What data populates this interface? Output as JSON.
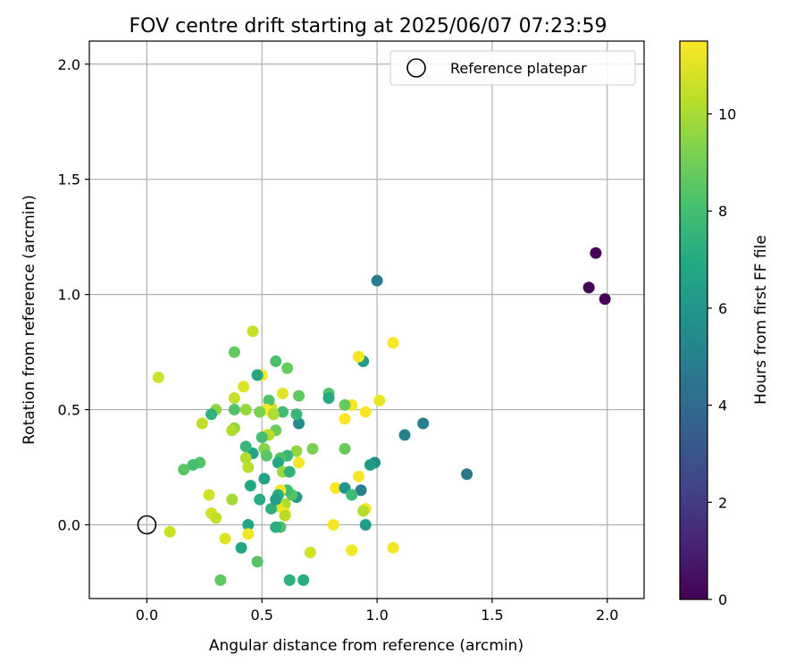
{
  "chart_data": {
    "type": "scatter",
    "title": "FOV centre drift starting at 2025/06/07 07:23:59",
    "xlabel": "Angular distance from reference (arcmin)",
    "ylabel": "Rotation from reference (arcmin)",
    "xlim": [
      -0.25,
      2.16
    ],
    "ylim": [
      -0.32,
      2.1
    ],
    "x_ticks": [
      0.0,
      0.5,
      1.0,
      1.5,
      2.0
    ],
    "x_tick_labels": [
      "0.0",
      "0.5",
      "1.0",
      "1.5",
      "2.0"
    ],
    "y_ticks": [
      0.0,
      0.5,
      1.0,
      1.5,
      2.0
    ],
    "y_tick_labels": [
      "0.0",
      "0.5",
      "1.0",
      "1.5",
      "2.0"
    ],
    "grid": true,
    "colormap": "viridis",
    "colorbar": {
      "label": "Hours from first FF file",
      "range": [
        0,
        11.5
      ],
      "ticks": [
        0,
        2,
        4,
        6,
        8,
        10
      ],
      "tick_labels": [
        "0",
        "2",
        "4",
        "6",
        "8",
        "10"
      ]
    },
    "legend": {
      "position": "top-right",
      "entries": [
        {
          "label": "Reference platepar",
          "marker": "hollow-circle"
        }
      ]
    },
    "reference_point": {
      "x": 0.0,
      "y": 0.0
    },
    "points": [
      {
        "x": 1.95,
        "y": 1.18,
        "c": 0.1
      },
      {
        "x": 1.92,
        "y": 1.03,
        "c": 0.1
      },
      {
        "x": 1.99,
        "y": 0.98,
        "c": 0.1
      },
      {
        "x": 1.0,
        "y": 1.06,
        "c": 4.8
      },
      {
        "x": 1.39,
        "y": 0.22,
        "c": 4.6
      },
      {
        "x": 1.2,
        "y": 0.44,
        "c": 4.9
      },
      {
        "x": 1.12,
        "y": 0.39,
        "c": 5.0
      },
      {
        "x": 0.94,
        "y": 0.71,
        "c": 6.2
      },
      {
        "x": 0.92,
        "y": 0.73,
        "c": 11.3
      },
      {
        "x": 1.07,
        "y": 0.79,
        "c": 11.4
      },
      {
        "x": 1.01,
        "y": 0.54,
        "c": 11.2
      },
      {
        "x": 0.95,
        "y": 0.49,
        "c": 11.4
      },
      {
        "x": 0.89,
        "y": 0.52,
        "c": 11.3
      },
      {
        "x": 0.86,
        "y": 0.46,
        "c": 11.5
      },
      {
        "x": 0.99,
        "y": 0.27,
        "c": 5.6
      },
      {
        "x": 0.97,
        "y": 0.26,
        "c": 6.3
      },
      {
        "x": 0.93,
        "y": 0.15,
        "c": 4.9
      },
      {
        "x": 0.92,
        "y": 0.21,
        "c": 11.3
      },
      {
        "x": 0.95,
        "y": 0.07,
        "c": 11.4
      },
      {
        "x": 0.94,
        "y": 0.06,
        "c": 10.2
      },
      {
        "x": 0.95,
        "y": 0.0,
        "c": 6.4
      },
      {
        "x": 0.89,
        "y": -0.11,
        "c": 11.3
      },
      {
        "x": 1.07,
        "y": -0.1,
        "c": 11.3
      },
      {
        "x": 0.81,
        "y": 0.0,
        "c": 11.4
      },
      {
        "x": 0.82,
        "y": 0.16,
        "c": 11.5
      },
      {
        "x": 0.86,
        "y": 0.16,
        "c": 5.9
      },
      {
        "x": 0.89,
        "y": 0.13,
        "c": 7.8
      },
      {
        "x": 0.86,
        "y": 0.33,
        "c": 8.8
      },
      {
        "x": 0.86,
        "y": 0.52,
        "c": 8.8
      },
      {
        "x": 0.79,
        "y": 0.57,
        "c": 8.3
      },
      {
        "x": 0.79,
        "y": 0.55,
        "c": 7.0
      },
      {
        "x": 0.72,
        "y": 0.33,
        "c": 9.2
      },
      {
        "x": 0.71,
        "y": -0.12,
        "c": 10.7
      },
      {
        "x": 0.68,
        "y": -0.24,
        "c": 7.1
      },
      {
        "x": 0.62,
        "y": -0.24,
        "c": 7.3
      },
      {
        "x": 0.66,
        "y": 0.56,
        "c": 8.6
      },
      {
        "x": 0.66,
        "y": 0.44,
        "c": 5.5
      },
      {
        "x": 0.65,
        "y": 0.48,
        "c": 7.6
      },
      {
        "x": 0.65,
        "y": 0.32,
        "c": 9.6
      },
      {
        "x": 0.66,
        "y": 0.27,
        "c": 11.4
      },
      {
        "x": 0.65,
        "y": 0.12,
        "c": 6.3
      },
      {
        "x": 0.63,
        "y": 0.13,
        "c": 8.4
      },
      {
        "x": 0.61,
        "y": 0.68,
        "c": 8.8
      },
      {
        "x": 0.59,
        "y": 0.57,
        "c": 11.0
      },
      {
        "x": 0.59,
        "y": 0.49,
        "c": 7.9
      },
      {
        "x": 0.61,
        "y": 0.3,
        "c": 7.6
      },
      {
        "x": 0.58,
        "y": 0.29,
        "c": 8.3
      },
      {
        "x": 0.57,
        "y": 0.27,
        "c": 6.9
      },
      {
        "x": 0.59,
        "y": 0.23,
        "c": 9.8
      },
      {
        "x": 0.62,
        "y": 0.23,
        "c": 7.4
      },
      {
        "x": 0.61,
        "y": 0.15,
        "c": 8.0
      },
      {
        "x": 0.58,
        "y": 0.15,
        "c": 11.4
      },
      {
        "x": 0.57,
        "y": 0.13,
        "c": 7.2
      },
      {
        "x": 0.6,
        "y": 0.09,
        "c": 10.1
      },
      {
        "x": 0.57,
        "y": 0.08,
        "c": 11.1
      },
      {
        "x": 0.6,
        "y": 0.05,
        "c": 11.5
      },
      {
        "x": 0.6,
        "y": 0.04,
        "c": 10.3
      },
      {
        "x": 0.58,
        "y": -0.01,
        "c": 8.2
      },
      {
        "x": 0.56,
        "y": -0.01,
        "c": 7.2
      },
      {
        "x": 0.56,
        "y": 0.71,
        "c": 8.2
      },
      {
        "x": 0.56,
        "y": 0.41,
        "c": 8.9
      },
      {
        "x": 0.54,
        "y": 0.51,
        "c": 10.7
      },
      {
        "x": 0.53,
        "y": 0.54,
        "c": 8.3
      },
      {
        "x": 0.52,
        "y": 0.5,
        "c": 11.4
      },
      {
        "x": 0.52,
        "y": 0.39,
        "c": 11.5
      },
      {
        "x": 0.53,
        "y": 0.39,
        "c": 10.2
      },
      {
        "x": 0.51,
        "y": 0.33,
        "c": 9.4
      },
      {
        "x": 0.52,
        "y": 0.3,
        "c": 8.5
      },
      {
        "x": 0.51,
        "y": 0.2,
        "c": 6.6
      },
      {
        "x": 0.54,
        "y": 0.07,
        "c": 7.3
      },
      {
        "x": 0.56,
        "y": 0.11,
        "c": 6.5
      },
      {
        "x": 0.55,
        "y": 0.48,
        "c": 10.1
      },
      {
        "x": 0.5,
        "y": 0.65,
        "c": 11.4
      },
      {
        "x": 0.49,
        "y": 0.49,
        "c": 9.2
      },
      {
        "x": 0.5,
        "y": 0.38,
        "c": 8.0
      },
      {
        "x": 0.48,
        "y": 0.65,
        "c": 6.8
      },
      {
        "x": 0.46,
        "y": 0.84,
        "c": 10.5
      },
      {
        "x": 0.49,
        "y": 0.11,
        "c": 7.1
      },
      {
        "x": 0.48,
        "y": -0.16,
        "c": 8.4
      },
      {
        "x": 0.46,
        "y": 0.31,
        "c": 6.6
      },
      {
        "x": 0.45,
        "y": 0.17,
        "c": 6.9
      },
      {
        "x": 0.44,
        "y": 0.25,
        "c": 10.3
      },
      {
        "x": 0.43,
        "y": 0.29,
        "c": 10.1
      },
      {
        "x": 0.43,
        "y": 0.34,
        "c": 7.6
      },
      {
        "x": 0.44,
        "y": 0.0,
        "c": 6.8
      },
      {
        "x": 0.44,
        "y": -0.04,
        "c": 11.3
      },
      {
        "x": 0.42,
        "y": 0.6,
        "c": 10.9
      },
      {
        "x": 0.43,
        "y": 0.5,
        "c": 9.7
      },
      {
        "x": 0.41,
        "y": -0.1,
        "c": 6.8
      },
      {
        "x": 0.38,
        "y": 0.75,
        "c": 8.7
      },
      {
        "x": 0.38,
        "y": 0.55,
        "c": 10.5
      },
      {
        "x": 0.38,
        "y": 0.5,
        "c": 8.3
      },
      {
        "x": 0.38,
        "y": 0.42,
        "c": 9.6
      },
      {
        "x": 0.37,
        "y": 0.41,
        "c": 10.1
      },
      {
        "x": 0.37,
        "y": 0.11,
        "c": 9.9
      },
      {
        "x": 0.34,
        "y": -0.06,
        "c": 10.9
      },
      {
        "x": 0.32,
        "y": -0.24,
        "c": 8.6
      },
      {
        "x": 0.3,
        "y": 0.5,
        "c": 9.6
      },
      {
        "x": 0.28,
        "y": 0.48,
        "c": 7.4
      },
      {
        "x": 0.27,
        "y": 0.13,
        "c": 10.7
      },
      {
        "x": 0.28,
        "y": 0.05,
        "c": 10.7
      },
      {
        "x": 0.3,
        "y": 0.03,
        "c": 10.4
      },
      {
        "x": 0.24,
        "y": 0.44,
        "c": 10.4
      },
      {
        "x": 0.23,
        "y": 0.27,
        "c": 8.3
      },
      {
        "x": 0.2,
        "y": 0.26,
        "c": 8.1
      },
      {
        "x": 0.16,
        "y": 0.24,
        "c": 8.5
      },
      {
        "x": 0.1,
        "y": -0.03,
        "c": 10.6
      },
      {
        "x": 0.05,
        "y": 0.64,
        "c": 10.6
      }
    ]
  }
}
